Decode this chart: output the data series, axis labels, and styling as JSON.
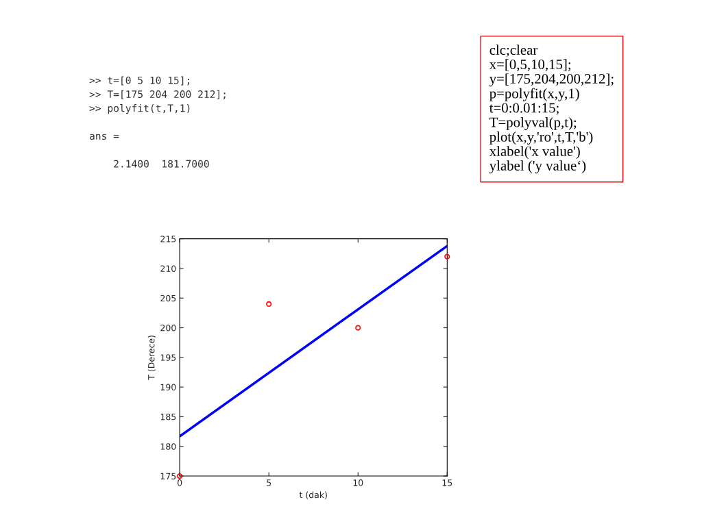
{
  "chart_data": {
    "type": "scatter",
    "xlabel": "t (dak)",
    "ylabel": "T (Derece)",
    "xlim": [
      0,
      15
    ],
    "xticks": [
      0,
      5,
      10,
      15
    ],
    "ylim": [
      175,
      215
    ],
    "yticks": [
      175,
      180,
      185,
      190,
      195,
      200,
      205,
      210,
      215
    ],
    "series": [
      {
        "color": "#ff0000",
        "marker": "circle",
        "x": [
          0,
          5,
          10,
          15
        ],
        "values": [
          175,
          204,
          200,
          212
        ]
      },
      {
        "type": "line",
        "color": "#0000ff",
        "marker": "none",
        "line_style": "solid",
        "x": [
          0,
          15
        ],
        "values": [
          181.7,
          213.8
        ]
      }
    ],
    "annotations": [
      ">> t=[0 5 10 15];\n>> T=[175 204 200 212];\n>> polyfit(t,T,1)\n\nans =\n\n    2.1400  181.7000",
      "clc;clear\nx=[0,5,10,15];\ny=[175,204,200,212];\np=polyfit(x,y,1)\nt=0:0.01:15;\nT=polyval(p,t);\nplot(x,y,'ro',t,T,'b')\nxlabel('x value')\nylabel ('y value‘)"
    ]
  }
}
